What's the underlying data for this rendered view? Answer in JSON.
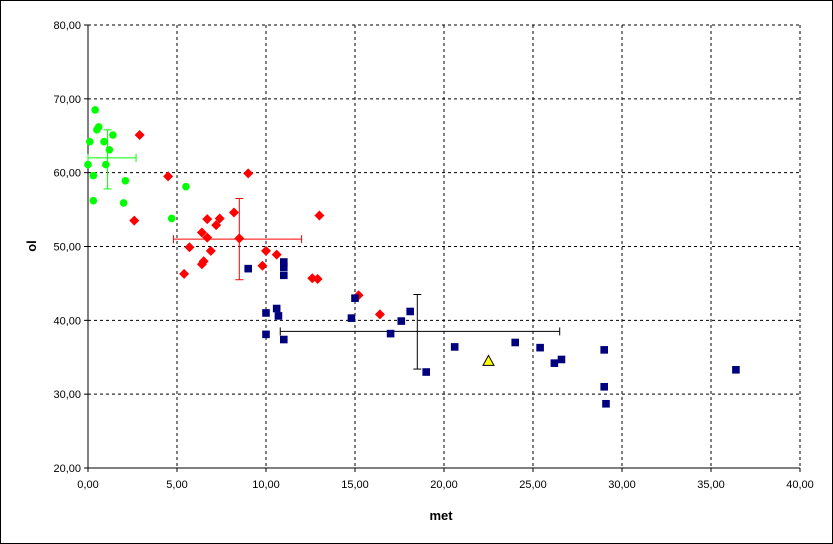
{
  "chart_data": {
    "type": "scatter",
    "title": "",
    "xlabel": "met",
    "ylabel": "ol",
    "xlim": [
      0,
      40
    ],
    "ylim": [
      20,
      80
    ],
    "x_ticks": [
      "0,00",
      "5,00",
      "10,00",
      "15,00",
      "20,00",
      "25,00",
      "30,00",
      "35,00",
      "40,00"
    ],
    "y_ticks": [
      "20,00",
      "30,00",
      "40,00",
      "50,00",
      "60,00",
      "70,00",
      "80,00"
    ],
    "grid": true,
    "grid_style": "dashed",
    "legend": "none",
    "series": [
      {
        "marker": "circle",
        "color": "#00ff00",
        "points": [
          [
            0.4,
            68.5
          ],
          [
            0.1,
            64.2
          ],
          [
            0.5,
            65.8
          ],
          [
            0.6,
            66.2
          ],
          [
            0.9,
            64.2
          ],
          [
            1.4,
            65.1
          ],
          [
            1.2,
            63.1
          ],
          [
            0.0,
            61.1
          ],
          [
            1.0,
            61.1
          ],
          [
            0.3,
            59.6
          ],
          [
            2.1,
            58.9
          ],
          [
            5.5,
            58.1
          ],
          [
            0.3,
            56.2
          ],
          [
            2.0,
            55.9
          ],
          [
            4.7,
            53.8
          ]
        ],
        "error_bar": {
          "x": 1.1,
          "y": 62.0,
          "x_low": 0.0,
          "x_high": 2.7,
          "y_low": 57.8,
          "y_high": 65.8
        }
      },
      {
        "marker": "diamond",
        "color": "#ff0000",
        "points": [
          [
            2.9,
            65.1
          ],
          [
            9.0,
            59.9
          ],
          [
            4.5,
            59.5
          ],
          [
            8.2,
            54.6
          ],
          [
            6.7,
            53.7
          ],
          [
            7.4,
            53.8
          ],
          [
            2.6,
            53.5
          ],
          [
            7.2,
            52.9
          ],
          [
            6.4,
            51.9
          ],
          [
            13.0,
            54.2
          ],
          [
            8.5,
            51.1
          ],
          [
            6.7,
            51.2
          ],
          [
            5.7,
            49.9
          ],
          [
            10.0,
            49.4
          ],
          [
            6.9,
            49.4
          ],
          [
            10.6,
            48.9
          ],
          [
            6.5,
            48.0
          ],
          [
            6.4,
            47.6
          ],
          [
            9.8,
            47.4
          ],
          [
            5.4,
            46.3
          ],
          [
            12.6,
            45.7
          ],
          [
            12.9,
            45.6
          ],
          [
            15.2,
            43.4
          ],
          [
            16.4,
            40.8
          ]
        ],
        "error_bar": {
          "x": 8.5,
          "y": 51.0,
          "x_low": 4.8,
          "x_high": 12.0,
          "y_low": 45.5,
          "y_high": 56.5
        }
      },
      {
        "marker": "square",
        "color": "#00007f",
        "points": [
          [
            9.0,
            47.0
          ],
          [
            11.0,
            47.9
          ],
          [
            11.0,
            47.2
          ],
          [
            11.0,
            46.1
          ],
          [
            15.0,
            43.0
          ],
          [
            10.6,
            41.6
          ],
          [
            18.1,
            41.2
          ],
          [
            10.0,
            41.0
          ],
          [
            10.7,
            40.6
          ],
          [
            14.8,
            40.3
          ],
          [
            17.6,
            39.9
          ],
          [
            10.0,
            38.1
          ],
          [
            17.0,
            38.2
          ],
          [
            11.0,
            37.4
          ],
          [
            24.0,
            37.0
          ],
          [
            20.6,
            36.4
          ],
          [
            25.4,
            36.3
          ],
          [
            29.0,
            36.0
          ],
          [
            26.6,
            34.7
          ],
          [
            26.2,
            34.2
          ],
          [
            36.4,
            33.3
          ],
          [
            19.0,
            33.0
          ],
          [
            29.0,
            31.0
          ],
          [
            29.1,
            28.7
          ]
        ],
        "error_bar": {
          "x": 18.5,
          "y": 38.5,
          "x_low": 10.8,
          "x_high": 26.5,
          "y_low": 33.4,
          "y_high": 43.5
        }
      },
      {
        "marker": "triangle",
        "color": "#ffff00",
        "points": [
          [
            22.5,
            34.5
          ]
        ]
      }
    ]
  }
}
